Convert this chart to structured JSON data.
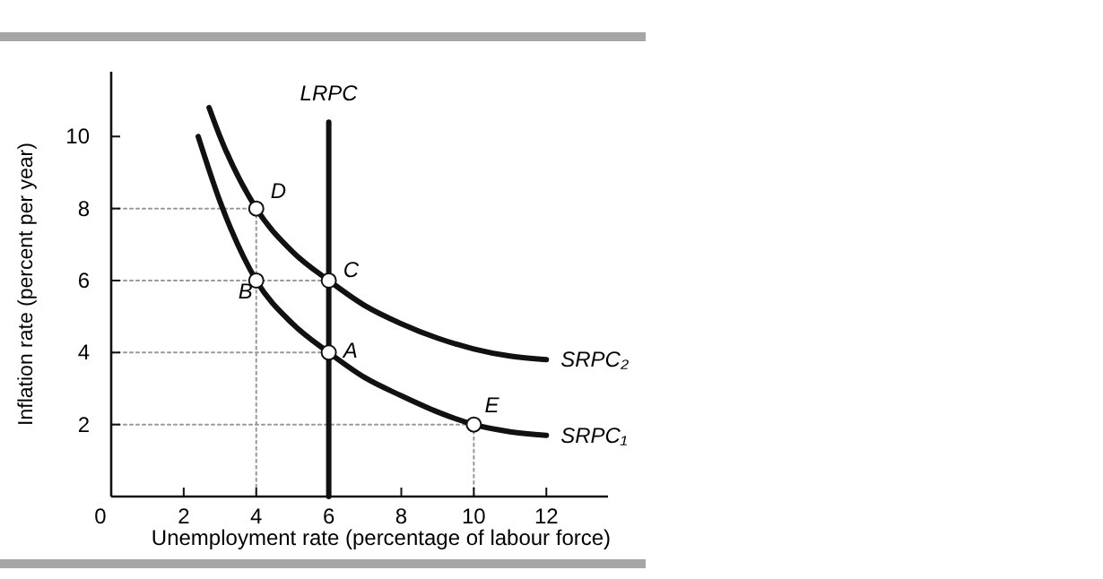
{
  "chart_data": {
    "type": "line",
    "xlabel": "Unemployment rate (percentage of labour force)",
    "ylabel": "Inflation rate (percent per year)",
    "xlim": [
      0,
      13.7
    ],
    "ylim": [
      0,
      11.8
    ],
    "xticks": [
      0,
      2,
      4,
      6,
      8,
      10,
      12
    ],
    "yticks": [
      2,
      4,
      6,
      8,
      10
    ],
    "grid": false,
    "marker": "none",
    "series": [
      {
        "color": "#999999",
        "line_style": "dotted",
        "x": [
          0,
          4
        ],
        "values": [
          8,
          8
        ]
      },
      {
        "color": "#999999",
        "line_style": "dotted",
        "x": [
          4,
          4
        ],
        "values": [
          8,
          0
        ]
      },
      {
        "color": "#999999",
        "line_style": "dotted",
        "x": [
          0,
          6
        ],
        "values": [
          6,
          6
        ]
      },
      {
        "color": "#999999",
        "line_style": "dotted",
        "x": [
          0,
          6
        ],
        "values": [
          4,
          4
        ]
      },
      {
        "color": "#999999",
        "line_style": "dotted",
        "x": [
          0,
          10
        ],
        "values": [
          2,
          2
        ]
      },
      {
        "color": "#999999",
        "line_style": "dotted",
        "x": [
          10,
          10
        ],
        "values": [
          2,
          0
        ]
      },
      {
        "name": "LRPC",
        "color": "#111111",
        "line_style": "solid",
        "x": [
          6,
          6
        ],
        "values": [
          0,
          10.4
        ]
      },
      {
        "name": "SRPC₁",
        "color": "#111111",
        "line_style": "solid",
        "x": [
          2.4,
          3,
          4,
          5,
          6,
          7,
          8,
          9,
          10,
          11,
          12
        ],
        "values": [
          10,
          8.2,
          6,
          4.8,
          4,
          3.3,
          2.8,
          2.35,
          2,
          1.8,
          1.7
        ]
      },
      {
        "name": "SRPC₂",
        "color": "#111111",
        "line_style": "solid",
        "x": [
          2.7,
          3,
          4,
          5,
          6,
          7,
          8,
          9,
          10,
          11,
          12
        ],
        "values": [
          10.8,
          10,
          8,
          6.8,
          6,
          5.3,
          4.8,
          4.4,
          4.1,
          3.9,
          3.8
        ]
      },
      {
        "type": "scatter",
        "marker": "circle",
        "color": "#ffffff",
        "x": [
          6,
          4,
          6,
          4,
          10
        ],
        "values": [
          4,
          6,
          6,
          8,
          2
        ]
      }
    ],
    "annotations": [
      {
        "text": "A",
        "x": 6,
        "y": 4
      },
      {
        "text": "B",
        "x": 4,
        "y": 6
      },
      {
        "text": "C",
        "x": 6,
        "y": 6
      },
      {
        "text": "D",
        "x": 4,
        "y": 8
      },
      {
        "text": "E",
        "x": 10,
        "y": 2
      }
    ]
  }
}
